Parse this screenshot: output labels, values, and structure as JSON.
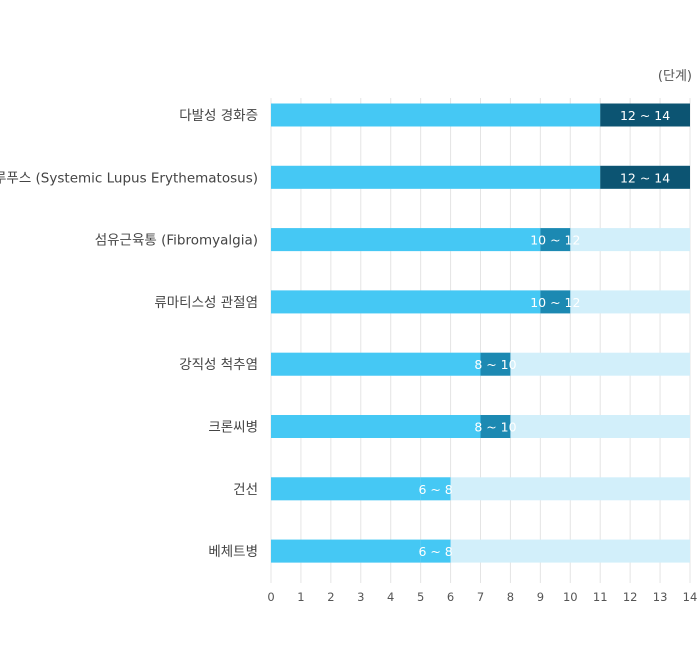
{
  "chart_data": {
    "type": "bar",
    "orientation": "horizontal",
    "title": "",
    "unit_label": "(단계)",
    "xlim": [
      0,
      14
    ],
    "x_ticks": [
      "0",
      "1",
      "2",
      "3",
      "4",
      "5",
      "6",
      "7",
      "8",
      "9",
      "10",
      "11",
      "12",
      "13",
      "14"
    ],
    "grid": "vertical",
    "categories": [
      "다발성 경화증",
      "루푸스 (Systemic Lupus Erythematosus)",
      "섬유근육통 (Fibromyalgia)",
      "류마티스성 관절염",
      "강직성 척추염",
      "크론씨병",
      "건선",
      "베체트병"
    ],
    "ranges": [
      {
        "low": 12,
        "high": 14,
        "label": "12 ~ 14"
      },
      {
        "low": 12,
        "high": 14,
        "label": "12 ~ 14"
      },
      {
        "low": 10,
        "high": 12,
        "label": "10 ~ 12"
      },
      {
        "low": 10,
        "high": 12,
        "label": "10 ~ 12"
      },
      {
        "low": 8,
        "high": 10,
        "label": "8 ~ 10"
      },
      {
        "low": 8,
        "high": 10,
        "label": "8 ~ 10"
      },
      {
        "low": 6,
        "high": 8,
        "label": "6 ~ 8"
      },
      {
        "low": 6,
        "high": 8,
        "label": "6 ~ 8"
      }
    ],
    "colors": {
      "base": "#45c8f4",
      "track": "#d2effa",
      "range_12_14": "#0c5472",
      "range_10_12": "#1c89b2",
      "range_8_10": "#1c89b2",
      "range_6_8": "#45c8f4",
      "grid": "#e4e4e4"
    }
  }
}
